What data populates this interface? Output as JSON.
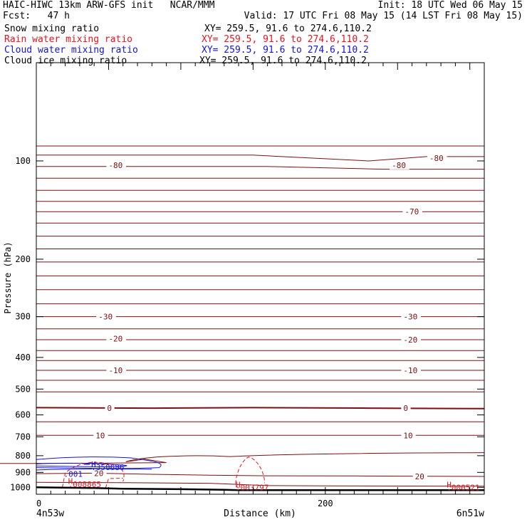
{
  "header": {
    "line1_left": "HAIC-HIWC 13km ARW-GFS init   NCAR/MMM",
    "line1_right": "Init: 18 UTC Wed 06 May 15",
    "line2_left": "Fcst:   47 h",
    "line2_right": "Valid: 17 UTC Fri 08 May 15 (14 LST Fri 08 May 15)",
    "fields": [
      {
        "label": "Snow mixing ratio",
        "xy": "XY= 259.5, 91.6 to 274.6,110.2",
        "color": "#000000"
      },
      {
        "label": "Rain water mixing ratio",
        "xy": "XY= 259.5, 91.6 to 274.6,110.2",
        "color": "#e8141c"
      },
      {
        "label": "Cloud water mixing ratio",
        "xy": "XY= 259.5, 91.6 to 274.6,110.2",
        "color": "#1414d8"
      },
      {
        "label": "Cloud ice mixing ratio",
        "xy": "XY= 259.5, 91.6 to 274.6,110.2",
        "color": "#000000"
      }
    ]
  },
  "chart_data": {
    "type": "line",
    "xlabel": "Distance (km)",
    "ylabel": "Pressure (hPa)",
    "xlim": [
      0,
      310
    ],
    "ylim": [
      1050,
      50
    ],
    "y_log": true,
    "x_ticks": [
      {
        "value": 0,
        "label": "0"
      },
      {
        "value": 200,
        "label": "200"
      }
    ],
    "y_ticks": [
      100,
      200,
      300,
      400,
      500,
      600,
      700,
      800,
      900,
      1000
    ],
    "x_endpoints": {
      "left": "4n53w",
      "right": "6n51w"
    },
    "colors": {
      "temperature": "#7a1010",
      "rain": "#e8141c",
      "cloud_water": "#1414d8",
      "terrain": "#000000"
    },
    "isotherm_labels": [
      {
        "x": 50,
        "p": 103,
        "label": "-80"
      },
      {
        "x": 246,
        "p": 103,
        "label": "-80"
      },
      {
        "x": 272,
        "p": 98,
        "label": "-80"
      },
      {
        "x": 255,
        "p": 143,
        "label": "-70"
      },
      {
        "x": 43,
        "p": 300,
        "label": "-30"
      },
      {
        "x": 254,
        "p": 300,
        "label": "-30"
      },
      {
        "x": 50,
        "p": 350,
        "label": "-20"
      },
      {
        "x": 254,
        "p": 353,
        "label": "-20"
      },
      {
        "x": 50,
        "p": 438,
        "label": "-10"
      },
      {
        "x": 254,
        "p": 438,
        "label": "-10"
      },
      {
        "x": 49,
        "p": 572,
        "label": "0"
      },
      {
        "x": 254,
        "p": 572,
        "label": "0"
      },
      {
        "x": 41,
        "p": 693,
        "label": "10"
      },
      {
        "x": 254,
        "p": 693,
        "label": "10"
      },
      {
        "x": 40,
        "p": 906,
        "label": "20"
      },
      {
        "x": 262,
        "p": 925,
        "label": "20"
      }
    ],
    "annotations": [
      {
        "x": 38,
        "p": 850,
        "text": "H",
        "color": "#1414d8"
      },
      {
        "x": 38,
        "p": 868,
        "text": ".350686",
        "color": "#1414d8"
      },
      {
        "x": 19,
        "p": 910,
        "text": ".001",
        "color": "#1414d8"
      },
      {
        "x": 22,
        "p": 958,
        "text": "H",
        "color": "#e8141c"
      },
      {
        "x": 22,
        "p": 979,
        "text": ".008865",
        "color": "#e8141c"
      },
      {
        "x": 138,
        "p": 980,
        "text": "H",
        "color": "#e8141c"
      },
      {
        "x": 138,
        "p": 1002,
        "text": ".003797",
        "color": "#e8141c"
      },
      {
        "x": 284,
        "p": 980,
        "text": "H",
        "color": "#e8141c"
      },
      {
        "x": 284,
        "p": 1002,
        "text": ".000521",
        "color": "#e8141c"
      }
    ],
    "terrain": [
      [
        0,
        1000
      ],
      [
        40,
        1005
      ],
      [
        60,
        1010
      ],
      [
        100,
        1013
      ],
      [
        130,
        1018
      ],
      [
        140,
        1020
      ],
      [
        180,
        1020
      ],
      [
        310,
        1020
      ]
    ]
  }
}
